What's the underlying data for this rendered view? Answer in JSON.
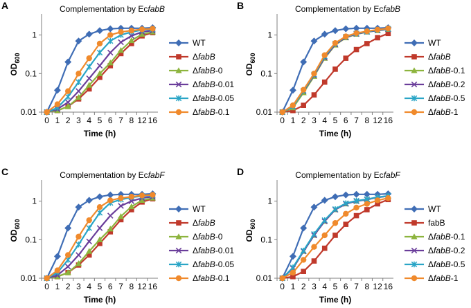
{
  "figure_caption": "",
  "colors": {
    "WT": "#3F6DB5",
    "red": "#C0392B",
    "green": "#8DB43E",
    "purple": "#6A3D9A",
    "cyan": "#2AA5C6",
    "orange": "#F08A2C",
    "axis": "#7F7F7F"
  },
  "chart_data": [
    {
      "type": "line",
      "panel_letter": "A",
      "title_prefix": "Complementation by Ec",
      "title_italic": "fabB",
      "xlabel": "Time (h)",
      "ylabel_main": "OD",
      "ylabel_sub": "600",
      "yscale": "log",
      "ylim": [
        0.01,
        3
      ],
      "y_ticks": [
        "0.01",
        "0.1",
        "1"
      ],
      "categories": [
        "0",
        "1",
        "2",
        "3",
        "4",
        "5",
        "6",
        "7",
        "8",
        "12",
        "16"
      ],
      "series": [
        {
          "prefix": "",
          "italic": "",
          "suffix": "WT",
          "marker": "diamond",
          "color": "#3F6DB5",
          "values": [
            0.01,
            0.037,
            0.2,
            0.7,
            1.05,
            1.3,
            1.45,
            1.5,
            1.5,
            1.5,
            1.55
          ]
        },
        {
          "prefix": "Δ",
          "italic": "fabB",
          "suffix": "",
          "marker": "square",
          "color": "#C0392B",
          "values": [
            0.01,
            0.011,
            0.014,
            0.022,
            0.04,
            0.08,
            0.16,
            0.33,
            0.6,
            0.95,
            1.15
          ]
        },
        {
          "prefix": "Δ",
          "italic": "fabB",
          "suffix": "-0",
          "marker": "triangle",
          "color": "#8DB43E",
          "values": [
            0.01,
            0.011,
            0.014,
            0.024,
            0.05,
            0.1,
            0.19,
            0.4,
            0.72,
            1.05,
            1.2
          ]
        },
        {
          "prefix": "Δ",
          "italic": "fabB",
          "suffix": "-0.01",
          "marker": "x",
          "color": "#6A3D9A",
          "values": [
            0.01,
            0.012,
            0.018,
            0.035,
            0.075,
            0.16,
            0.35,
            0.65,
            0.95,
            1.2,
            1.3
          ]
        },
        {
          "prefix": "Δ",
          "italic": "fabB",
          "suffix": "-0.05",
          "marker": "star",
          "color": "#2AA5C6",
          "values": [
            0.01,
            0.013,
            0.025,
            0.06,
            0.15,
            0.35,
            0.7,
            1.0,
            1.2,
            1.35,
            1.4
          ]
        },
        {
          "prefix": "Δ",
          "italic": "fabB",
          "suffix": "-0.1",
          "marker": "circle",
          "color": "#F08A2C",
          "values": [
            0.01,
            0.016,
            0.035,
            0.1,
            0.25,
            0.6,
            1.0,
            1.2,
            1.3,
            1.4,
            1.45
          ]
        }
      ]
    },
    {
      "type": "line",
      "panel_letter": "B",
      "title_prefix": "Complementation by Ec",
      "title_italic": "fabB",
      "xlabel": "Time (h)",
      "ylabel_main": "OD",
      "ylabel_sub": "600",
      "yscale": "log",
      "ylim": [
        0.01,
        3
      ],
      "y_ticks": [
        "0.01",
        "0.1",
        "1"
      ],
      "categories": [
        "0",
        "1",
        "2",
        "3",
        "4",
        "5",
        "6",
        "7",
        "8",
        "12",
        "16"
      ],
      "series": [
        {
          "prefix": "",
          "italic": "",
          "suffix": "WT",
          "marker": "diamond",
          "color": "#3F6DB5",
          "values": [
            0.01,
            0.037,
            0.2,
            0.7,
            1.05,
            1.3,
            1.45,
            1.5,
            1.5,
            1.5,
            1.55
          ]
        },
        {
          "prefix": "Δ",
          "italic": "fabB",
          "suffix": "",
          "marker": "square",
          "color": "#C0392B",
          "values": [
            0.01,
            0.011,
            0.015,
            0.028,
            0.06,
            0.13,
            0.25,
            0.42,
            0.6,
            0.85,
            1.1
          ]
        },
        {
          "prefix": "Δ",
          "italic": "fabB",
          "suffix": "-0.1",
          "marker": "triangle",
          "color": "#8DB43E",
          "values": [
            0.01,
            0.013,
            0.032,
            0.085,
            0.25,
            0.55,
            0.85,
            1.05,
            1.2,
            1.3,
            1.4
          ]
        },
        {
          "prefix": "Δ",
          "italic": "fabB",
          "suffix": "-0.2",
          "marker": "x",
          "color": "#6A3D9A",
          "values": [
            0.01,
            0.014,
            0.035,
            0.09,
            0.26,
            0.57,
            0.87,
            1.07,
            1.2,
            1.32,
            1.42
          ]
        },
        {
          "prefix": "Δ",
          "italic": "fabB",
          "suffix": "-0.5",
          "marker": "star",
          "color": "#2AA5C6",
          "values": [
            0.01,
            0.014,
            0.036,
            0.095,
            0.28,
            0.6,
            0.9,
            1.1,
            1.22,
            1.35,
            1.45
          ]
        },
        {
          "prefix": "Δ",
          "italic": "fabB",
          "suffix": "-1",
          "marker": "circle",
          "color": "#F08A2C",
          "values": [
            0.01,
            0.015,
            0.038,
            0.1,
            0.3,
            0.62,
            0.92,
            1.12,
            1.25,
            1.38,
            1.48
          ]
        }
      ]
    },
    {
      "type": "line",
      "panel_letter": "C",
      "title_prefix": "Complementation by Ec",
      "title_italic": "fabF",
      "xlabel": "Time (h)",
      "ylabel_main": "OD",
      "ylabel_sub": "600",
      "yscale": "log",
      "ylim": [
        0.01,
        3
      ],
      "y_ticks": [
        "0.01",
        "0.1",
        "1"
      ],
      "categories": [
        "0",
        "1",
        "2",
        "3",
        "4",
        "5",
        "6",
        "7",
        "8",
        "12",
        "16"
      ],
      "series": [
        {
          "prefix": "",
          "italic": "",
          "suffix": "WT",
          "marker": "diamond",
          "color": "#3F6DB5",
          "values": [
            0.01,
            0.037,
            0.2,
            0.7,
            1.05,
            1.3,
            1.45,
            1.5,
            1.5,
            1.5,
            1.55
          ]
        },
        {
          "prefix": "Δ",
          "italic": "fabB",
          "suffix": "",
          "marker": "square",
          "color": "#C0392B",
          "values": [
            0.01,
            0.011,
            0.014,
            0.022,
            0.04,
            0.08,
            0.16,
            0.33,
            0.6,
            0.95,
            1.15
          ]
        },
        {
          "prefix": "Δ",
          "italic": "fabB",
          "suffix": "-0",
          "marker": "triangle",
          "color": "#8DB43E",
          "values": [
            0.01,
            0.011,
            0.014,
            0.024,
            0.05,
            0.1,
            0.19,
            0.4,
            0.72,
            1.05,
            1.2
          ]
        },
        {
          "prefix": "Δ",
          "italic": "fabB",
          "suffix": "-0.01",
          "marker": "x",
          "color": "#6A3D9A",
          "values": [
            0.01,
            0.012,
            0.02,
            0.04,
            0.09,
            0.2,
            0.42,
            0.75,
            1.0,
            1.2,
            1.3
          ]
        },
        {
          "prefix": "Δ",
          "italic": "fabB",
          "suffix": "-0.05",
          "marker": "star",
          "color": "#2AA5C6",
          "values": [
            0.01,
            0.014,
            0.03,
            0.075,
            0.2,
            0.5,
            0.9,
            1.1,
            1.25,
            1.35,
            1.4
          ]
        },
        {
          "prefix": "Δ",
          "italic": "fabB",
          "suffix": "-0.1",
          "marker": "circle",
          "color": "#F08A2C",
          "values": [
            0.01,
            0.016,
            0.04,
            0.12,
            0.32,
            0.7,
            1.05,
            1.2,
            1.3,
            1.4,
            1.45
          ]
        }
      ]
    },
    {
      "type": "line",
      "panel_letter": "D",
      "title_prefix": "Complementation by Ec",
      "title_italic": "fabF",
      "xlabel": "Time (h)",
      "ylabel_main": "OD",
      "ylabel_sub": "600",
      "yscale": "log",
      "ylim": [
        0.01,
        3
      ],
      "y_ticks": [
        "0.01",
        "0.1",
        "1"
      ],
      "categories": [
        "0",
        "1",
        "2",
        "3",
        "4",
        "5",
        "6",
        "7",
        "8",
        "12",
        "16"
      ],
      "series": [
        {
          "prefix": "",
          "italic": "",
          "suffix": "WT",
          "marker": "diamond",
          "color": "#3F6DB5",
          "values": [
            0.01,
            0.037,
            0.2,
            0.7,
            1.05,
            1.3,
            1.45,
            1.5,
            1.5,
            1.5,
            1.55
          ]
        },
        {
          "prefix": "",
          "italic": "",
          "suffix": "fabB",
          "marker": "square",
          "color": "#C0392B",
          "values": [
            0.01,
            0.011,
            0.015,
            0.028,
            0.06,
            0.13,
            0.25,
            0.42,
            0.6,
            0.85,
            1.1
          ]
        },
        {
          "prefix": "Δ",
          "italic": "fabB",
          "suffix": "-0.1",
          "marker": "triangle",
          "color": "#8DB43E",
          "values": [
            0.01,
            0.018,
            0.05,
            0.13,
            0.3,
            0.6,
            0.85,
            1.0,
            1.1,
            1.25,
            1.35
          ]
        },
        {
          "prefix": "Δ",
          "italic": "fabB",
          "suffix": "-0.2",
          "marker": "x",
          "color": "#6A3D9A",
          "values": [
            0.01,
            0.018,
            0.05,
            0.13,
            0.3,
            0.6,
            0.85,
            1.0,
            1.1,
            1.25,
            1.35
          ]
        },
        {
          "prefix": "Δ",
          "italic": "fabB",
          "suffix": "-0.5",
          "marker": "star",
          "color": "#2AA5C6",
          "values": [
            0.01,
            0.019,
            0.052,
            0.14,
            0.32,
            0.62,
            0.88,
            1.02,
            1.12,
            1.27,
            1.37
          ]
        },
        {
          "prefix": "Δ",
          "italic": "fabB",
          "suffix": "-1",
          "marker": "circle",
          "color": "#F08A2C",
          "values": [
            0.01,
            0.014,
            0.03,
            0.065,
            0.13,
            0.27,
            0.47,
            0.68,
            0.85,
            1.05,
            1.2
          ]
        }
      ]
    }
  ]
}
